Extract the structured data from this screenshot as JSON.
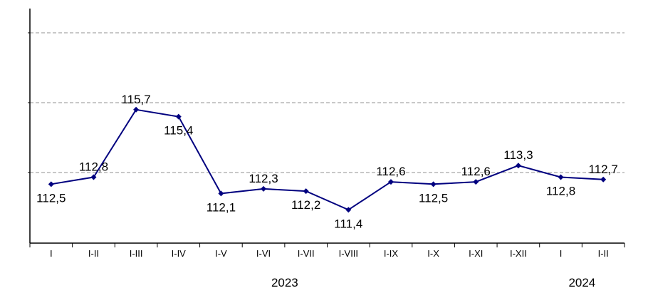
{
  "chart_data": {
    "type": "line",
    "title": "",
    "xlabel": "",
    "ylabel": "",
    "categories": [
      "I",
      "I-II",
      "I-III",
      "I-IV",
      "I-V",
      "I-VI",
      "I-VII",
      "I-VIII",
      "I-IX",
      "I-X",
      "I-XI",
      "I-XII",
      "I",
      "I-II"
    ],
    "series": [
      {
        "values": [
          112.5,
          112.8,
          115.7,
          115.4,
          112.1,
          112.3,
          112.2,
          111.4,
          112.6,
          112.5,
          112.6,
          113.3,
          112.8,
          112.7
        ],
        "labels": [
          "112,5",
          "112,8",
          "115,7",
          "115,4",
          "112,1",
          "112,3",
          "112,2",
          "111,4",
          "112,6",
          "112,5",
          "112,6",
          "113,3",
          "112,8",
          "112,7"
        ],
        "color": "#00007f"
      }
    ],
    "ylim": [
      110,
      120
    ],
    "gridlines": [
      113,
      116,
      119
    ],
    "grid": "horizontal dashed",
    "year_groups": [
      {
        "label": "2023",
        "start_index": 0,
        "end_index": 11
      },
      {
        "label": "2024",
        "start_index": 12,
        "end_index": 13
      }
    ]
  }
}
